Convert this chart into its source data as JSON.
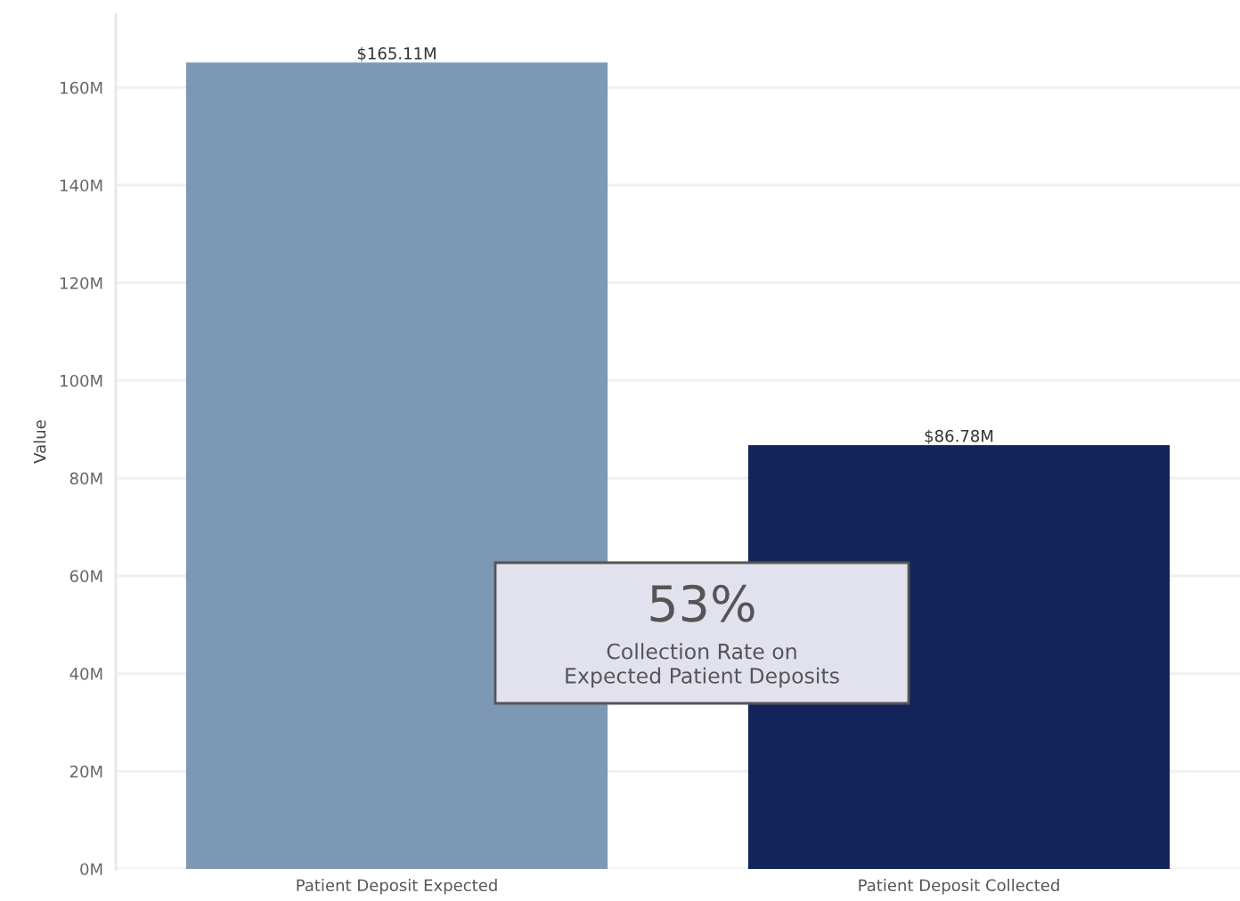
{
  "chart_data": {
    "type": "bar",
    "categories": [
      "Patient Deposit Expected",
      "Patient Deposit Collected"
    ],
    "values": [
      165.11,
      86.78
    ],
    "colors": [
      "#7d98b3",
      "#13245a"
    ],
    "value_labels": [
      "$165.11M",
      "$86.78M"
    ],
    "ylabel": "Value",
    "ylim": [
      0,
      175
    ],
    "yticks": [
      {
        "value": 0,
        "label": "0M"
      },
      {
        "value": 20,
        "label": "20M"
      },
      {
        "value": 40,
        "label": "40M"
      },
      {
        "value": 60,
        "label": "60M"
      },
      {
        "value": 80,
        "label": "80M"
      },
      {
        "value": 100,
        "label": "100M"
      },
      {
        "value": 120,
        "label": "120M"
      },
      {
        "value": 140,
        "label": "140M"
      },
      {
        "value": 160,
        "label": "160M"
      }
    ],
    "grid": "y",
    "annotations": [
      "53%",
      "Collection Rate on\nExpected Patient Deposits"
    ]
  }
}
